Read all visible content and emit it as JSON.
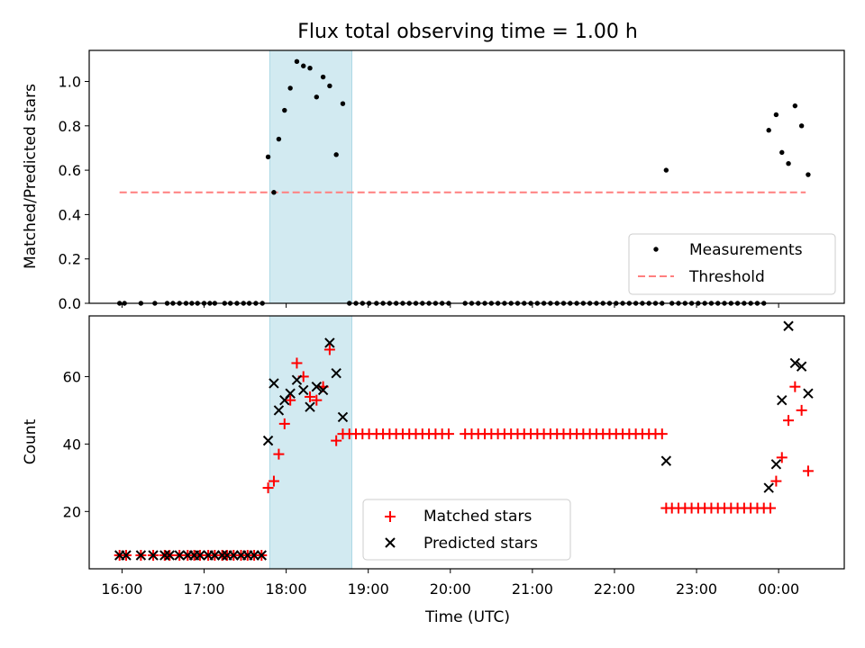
{
  "title": "Flux total observing time = 1.00 h",
  "colors": {
    "band": "#add8e6",
    "threshold": "#ff7f7f",
    "matched": "#ff0000",
    "predicted": "#000000",
    "measurement": "#000000"
  },
  "x_axis": {
    "label": "Time (UTC)",
    "range_hours": [
      15.6,
      24.8
    ],
    "ticks": [
      {
        "hour": 16,
        "label": "16:00"
      },
      {
        "hour": 17,
        "label": "17:00"
      },
      {
        "hour": 18,
        "label": "18:00"
      },
      {
        "hour": 19,
        "label": "19:00"
      },
      {
        "hour": 20,
        "label": "20:00"
      },
      {
        "hour": 21,
        "label": "21:00"
      },
      {
        "hour": 22,
        "label": "22:00"
      },
      {
        "hour": 23,
        "label": "23:00"
      },
      {
        "hour": 24,
        "label": "00:00"
      }
    ]
  },
  "highlight_band": {
    "start_hour": 17.8,
    "end_hour": 18.8
  },
  "chart_data": [
    {
      "type": "scatter",
      "panel": "top",
      "ylabel": "Matched/Predicted stars",
      "ylim": [
        0,
        1.14
      ],
      "yticks": [
        0.0,
        0.2,
        0.4,
        0.6,
        0.8,
        1.0
      ],
      "ytick_labels": [
        "0.0",
        "0.2",
        "0.4",
        "0.6",
        "0.8",
        "1.0"
      ],
      "legend": {
        "position": "lower-right",
        "entries": [
          {
            "label": "Measurements",
            "marker": "dot"
          },
          {
            "label": "Threshold",
            "marker": "dashed-line"
          }
        ]
      },
      "threshold": {
        "y": 0.5,
        "x_start": 15.97,
        "x_end": 24.33
      },
      "measurements": [
        [
          15.97,
          0
        ],
        [
          16.03,
          0
        ],
        [
          16.23,
          0
        ],
        [
          16.4,
          0
        ],
        [
          16.55,
          0
        ],
        [
          16.62,
          0
        ],
        [
          16.7,
          0
        ],
        [
          16.78,
          0
        ],
        [
          16.85,
          0
        ],
        [
          16.92,
          0
        ],
        [
          17.0,
          0
        ],
        [
          17.07,
          0
        ],
        [
          17.13,
          0
        ],
        [
          17.25,
          0
        ],
        [
          17.32,
          0
        ],
        [
          17.4,
          0
        ],
        [
          17.48,
          0
        ],
        [
          17.55,
          0
        ],
        [
          17.63,
          0
        ],
        [
          17.71,
          0
        ],
        [
          17.78,
          0.66
        ],
        [
          17.85,
          0.5
        ],
        [
          17.91,
          0.74
        ],
        [
          17.98,
          0.87
        ],
        [
          18.05,
          0.97
        ],
        [
          18.13,
          1.09
        ],
        [
          18.21,
          1.07
        ],
        [
          18.29,
          1.06
        ],
        [
          18.37,
          0.93
        ],
        [
          18.45,
          1.02
        ],
        [
          18.53,
          0.98
        ],
        [
          18.61,
          0.67
        ],
        [
          18.69,
          0.9
        ],
        [
          18.77,
          0
        ],
        [
          18.85,
          0
        ],
        [
          18.93,
          0
        ],
        [
          19.01,
          0
        ],
        [
          19.1,
          0
        ],
        [
          19.18,
          0
        ],
        [
          19.26,
          0
        ],
        [
          19.34,
          0
        ],
        [
          19.42,
          0
        ],
        [
          19.5,
          0
        ],
        [
          19.58,
          0
        ],
        [
          19.66,
          0
        ],
        [
          19.74,
          0
        ],
        [
          19.82,
          0
        ],
        [
          19.9,
          0
        ],
        [
          19.98,
          0
        ],
        [
          20.18,
          0
        ],
        [
          20.26,
          0
        ],
        [
          20.34,
          0
        ],
        [
          20.42,
          0
        ],
        [
          20.5,
          0
        ],
        [
          20.58,
          0
        ],
        [
          20.66,
          0
        ],
        [
          20.74,
          0
        ],
        [
          20.82,
          0
        ],
        [
          20.9,
          0
        ],
        [
          20.98,
          0
        ],
        [
          21.06,
          0
        ],
        [
          21.14,
          0
        ],
        [
          21.22,
          0
        ],
        [
          21.3,
          0
        ],
        [
          21.38,
          0
        ],
        [
          21.46,
          0
        ],
        [
          21.54,
          0
        ],
        [
          21.62,
          0
        ],
        [
          21.7,
          0
        ],
        [
          21.78,
          0
        ],
        [
          21.86,
          0
        ],
        [
          21.94,
          0
        ],
        [
          22.02,
          0
        ],
        [
          22.1,
          0
        ],
        [
          22.18,
          0
        ],
        [
          22.26,
          0
        ],
        [
          22.34,
          0
        ],
        [
          22.42,
          0
        ],
        [
          22.5,
          0
        ],
        [
          22.58,
          0
        ],
        [
          22.63,
          0.6
        ],
        [
          22.7,
          0
        ],
        [
          22.78,
          0
        ],
        [
          22.86,
          0
        ],
        [
          22.94,
          0
        ],
        [
          23.02,
          0
        ],
        [
          23.1,
          0
        ],
        [
          23.18,
          0
        ],
        [
          23.26,
          0
        ],
        [
          23.34,
          0
        ],
        [
          23.42,
          0
        ],
        [
          23.5,
          0
        ],
        [
          23.58,
          0
        ],
        [
          23.66,
          0
        ],
        [
          23.74,
          0
        ],
        [
          23.82,
          0
        ],
        [
          23.88,
          0.78
        ],
        [
          23.97,
          0.85
        ],
        [
          24.04,
          0.68
        ],
        [
          24.12,
          0.63
        ],
        [
          24.2,
          0.89
        ],
        [
          24.28,
          0.8
        ],
        [
          24.36,
          0.58
        ]
      ]
    },
    {
      "type": "scatter",
      "panel": "bottom",
      "ylabel": "Count",
      "xlabel": "Time (UTC)",
      "ylim": [
        3,
        78
      ],
      "yticks": [
        20,
        40,
        60
      ],
      "ytick_labels": [
        "20",
        "40",
        "60"
      ],
      "legend": {
        "position": "lower-center",
        "entries": [
          {
            "label": "Matched stars",
            "marker": "plus"
          },
          {
            "label": "Predicted stars",
            "marker": "x"
          }
        ]
      },
      "series": [
        {
          "name": "Matched stars",
          "marker": "plus",
          "points": [
            [
              15.97,
              7
            ],
            [
              16.05,
              7
            ],
            [
              16.23,
              7
            ],
            [
              16.38,
              7
            ],
            [
              16.52,
              7
            ],
            [
              16.58,
              7
            ],
            [
              16.7,
              7
            ],
            [
              16.8,
              7
            ],
            [
              16.88,
              7
            ],
            [
              16.95,
              7
            ],
            [
              17.05,
              7
            ],
            [
              17.13,
              7
            ],
            [
              17.22,
              7
            ],
            [
              17.28,
              7
            ],
            [
              17.36,
              7
            ],
            [
              17.45,
              7
            ],
            [
              17.53,
              7
            ],
            [
              17.61,
              7
            ],
            [
              17.7,
              7
            ],
            [
              17.78,
              27
            ],
            [
              17.85,
              29
            ],
            [
              17.91,
              37
            ],
            [
              17.98,
              46
            ],
            [
              18.05,
              53
            ],
            [
              18.13,
              64
            ],
            [
              18.21,
              60
            ],
            [
              18.29,
              54
            ],
            [
              18.37,
              53
            ],
            [
              18.45,
              57
            ],
            [
              18.53,
              68
            ],
            [
              18.61,
              41
            ],
            [
              18.69,
              43
            ],
            [
              18.77,
              43
            ],
            [
              18.85,
              43
            ],
            [
              18.93,
              43
            ],
            [
              19.01,
              43
            ],
            [
              19.1,
              43
            ],
            [
              19.18,
              43
            ],
            [
              19.26,
              43
            ],
            [
              19.34,
              43
            ],
            [
              19.42,
              43
            ],
            [
              19.5,
              43
            ],
            [
              19.58,
              43
            ],
            [
              19.66,
              43
            ],
            [
              19.74,
              43
            ],
            [
              19.82,
              43
            ],
            [
              19.9,
              43
            ],
            [
              19.98,
              43
            ],
            [
              20.18,
              43
            ],
            [
              20.26,
              43
            ],
            [
              20.34,
              43
            ],
            [
              20.42,
              43
            ],
            [
              20.5,
              43
            ],
            [
              20.58,
              43
            ],
            [
              20.66,
              43
            ],
            [
              20.74,
              43
            ],
            [
              20.82,
              43
            ],
            [
              20.9,
              43
            ],
            [
              20.98,
              43
            ],
            [
              21.06,
              43
            ],
            [
              21.14,
              43
            ],
            [
              21.22,
              43
            ],
            [
              21.3,
              43
            ],
            [
              21.38,
              43
            ],
            [
              21.46,
              43
            ],
            [
              21.54,
              43
            ],
            [
              21.62,
              43
            ],
            [
              21.7,
              43
            ],
            [
              21.78,
              43
            ],
            [
              21.86,
              43
            ],
            [
              21.94,
              43
            ],
            [
              22.02,
              43
            ],
            [
              22.1,
              43
            ],
            [
              22.18,
              43
            ],
            [
              22.26,
              43
            ],
            [
              22.34,
              43
            ],
            [
              22.42,
              43
            ],
            [
              22.5,
              43
            ],
            [
              22.58,
              43
            ],
            [
              22.63,
              21
            ],
            [
              22.7,
              21
            ],
            [
              22.78,
              21
            ],
            [
              22.86,
              21
            ],
            [
              22.94,
              21
            ],
            [
              23.02,
              21
            ],
            [
              23.1,
              21
            ],
            [
              23.18,
              21
            ],
            [
              23.26,
              21
            ],
            [
              23.34,
              21
            ],
            [
              23.42,
              21
            ],
            [
              23.5,
              21
            ],
            [
              23.58,
              21
            ],
            [
              23.66,
              21
            ],
            [
              23.74,
              21
            ],
            [
              23.82,
              21
            ],
            [
              23.9,
              21
            ],
            [
              23.97,
              29
            ],
            [
              24.04,
              36
            ],
            [
              24.12,
              47
            ],
            [
              24.2,
              57
            ],
            [
              24.28,
              50
            ],
            [
              24.36,
              32
            ]
          ]
        },
        {
          "name": "Predicted stars",
          "marker": "x",
          "points": [
            [
              15.97,
              7
            ],
            [
              16.05,
              7
            ],
            [
              16.23,
              7
            ],
            [
              16.38,
              7
            ],
            [
              16.52,
              7
            ],
            [
              16.58,
              7
            ],
            [
              16.7,
              7
            ],
            [
              16.8,
              7
            ],
            [
              16.88,
              7
            ],
            [
              16.95,
              7
            ],
            [
              17.05,
              7
            ],
            [
              17.13,
              7
            ],
            [
              17.22,
              7
            ],
            [
              17.28,
              7
            ],
            [
              17.36,
              7
            ],
            [
              17.45,
              7
            ],
            [
              17.53,
              7
            ],
            [
              17.61,
              7
            ],
            [
              17.7,
              7
            ],
            [
              17.78,
              41
            ],
            [
              17.85,
              58
            ],
            [
              17.91,
              50
            ],
            [
              17.98,
              53
            ],
            [
              18.05,
              55
            ],
            [
              18.13,
              59
            ],
            [
              18.21,
              56
            ],
            [
              18.29,
              51
            ],
            [
              18.37,
              57
            ],
            [
              18.45,
              56
            ],
            [
              18.53,
              70
            ],
            [
              18.61,
              61
            ],
            [
              18.69,
              48
            ],
            [
              22.63,
              35
            ],
            [
              23.88,
              27
            ],
            [
              23.97,
              34
            ],
            [
              24.04,
              53
            ],
            [
              24.12,
              75
            ],
            [
              24.2,
              64
            ],
            [
              24.28,
              63
            ],
            [
              24.36,
              55
            ]
          ]
        }
      ]
    }
  ]
}
